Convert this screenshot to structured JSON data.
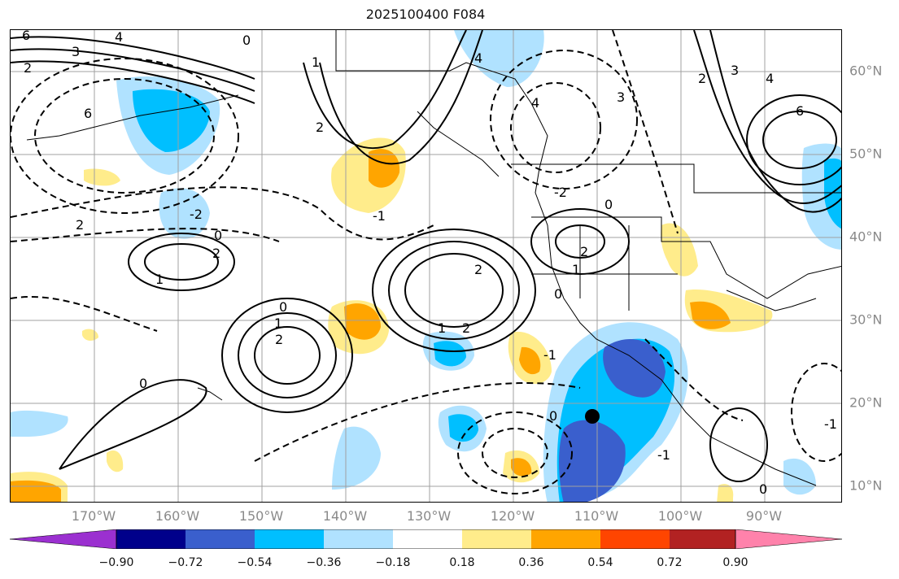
{
  "title": "2025100400 F084",
  "lat_labels": [
    "60°N",
    "50°N",
    "40°N",
    "30°N",
    "20°N",
    "10°N"
  ],
  "lon_labels": [
    "170°W",
    "160°W",
    "150°W",
    "140°W",
    "130°W",
    "120°W",
    "110°W",
    "100°W",
    "90°W"
  ],
  "colorbar": {
    "colors": [
      "#9b30d0",
      "#00008b",
      "#3a5fcd",
      "#00bfff",
      "#b0e2ff",
      "#ffffff",
      "#ffec8b",
      "#ffa500",
      "#ff4500",
      "#b22222",
      "#ff82ab"
    ],
    "tick_labels": [
      "−0.90",
      "−0.72",
      "−0.54",
      "−0.36",
      "−0.18",
      "0.18",
      "0.36",
      "0.54",
      "0.72",
      "0.90"
    ]
  },
  "contour_labels": [
    "6",
    "4",
    "3",
    "2",
    "0",
    "1",
    "2",
    "4",
    "6",
    "-2",
    "0",
    "2",
    "1",
    "2",
    "1",
    "2",
    "0",
    "2",
    "1",
    "0",
    "1",
    "0",
    "-1",
    "0",
    "-1",
    "6",
    "4",
    "3",
    "2",
    "0",
    "-2",
    "2",
    "-1",
    "0",
    "-1",
    "4",
    "2",
    "3"
  ],
  "marker": "storm-center-dot"
}
